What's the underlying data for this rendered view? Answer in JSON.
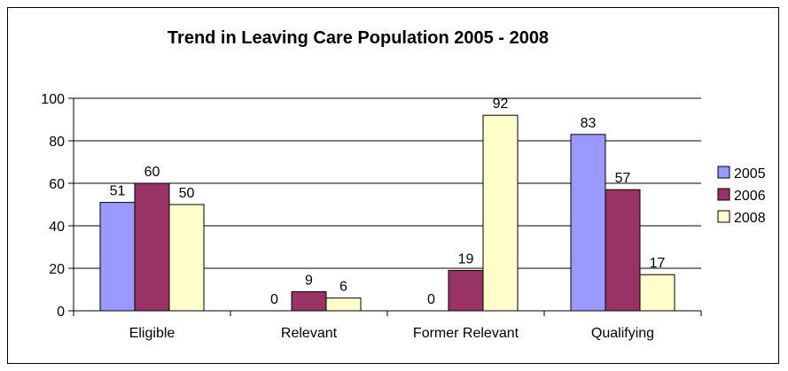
{
  "chart_data": {
    "type": "bar",
    "title": "Trend in Leaving Care Population 2005 - 2008",
    "categories": [
      "Eligible",
      "Relevant",
      "Former Relevant",
      "Qualifying"
    ],
    "series": [
      {
        "name": "2005",
        "values": [
          51,
          0,
          0,
          83
        ],
        "color": "#9999ff"
      },
      {
        "name": "2006",
        "values": [
          60,
          9,
          19,
          57
        ],
        "color": "#993366"
      },
      {
        "name": "2008",
        "values": [
          50,
          6,
          92,
          17
        ],
        "color": "#ffffcc"
      }
    ],
    "ylim": [
      0,
      100
    ],
    "yticks": [
      0,
      20,
      40,
      60,
      80,
      100
    ],
    "grid": true,
    "legend_position": "right"
  }
}
